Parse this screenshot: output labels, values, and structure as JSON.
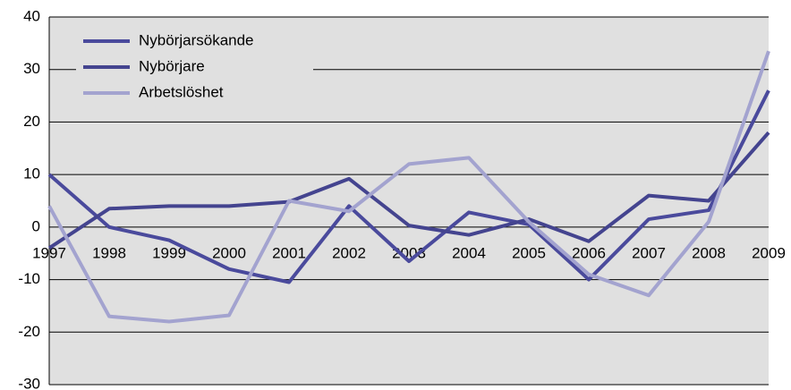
{
  "chart_data": {
    "type": "line",
    "categories": [
      "1997",
      "1998",
      "1999",
      "2000",
      "2001",
      "2002",
      "2003",
      "2004",
      "2005",
      "2006",
      "2007",
      "2008",
      "2009"
    ],
    "series": [
      {
        "name": "Nybörjarsökande",
        "color": "#4a4a9c",
        "values": [
          10,
          0,
          -2.5,
          -8,
          -10.5,
          4,
          -6.5,
          2.8,
          0.5,
          -10,
          1.5,
          3.2,
          26
        ]
      },
      {
        "name": "Nybörjare",
        "color": "#44448f",
        "values": [
          -4,
          3.5,
          4,
          4,
          4.8,
          9.2,
          0.3,
          -1.5,
          1.5,
          -2.7,
          6,
          5,
          18
        ]
      },
      {
        "name": "Arbetslöshet",
        "color": "#a3a3cf",
        "values": [
          4,
          -17,
          -18,
          -16.8,
          5,
          3,
          12,
          13.2,
          1,
          -9,
          -13,
          1,
          33.5
        ]
      }
    ],
    "ylim": [
      -30,
      40
    ],
    "yticks": [
      -30,
      -20,
      -10,
      0,
      10,
      20,
      30,
      40
    ],
    "grid": true,
    "legend": "upper left",
    "background": "#e0e0e0"
  }
}
